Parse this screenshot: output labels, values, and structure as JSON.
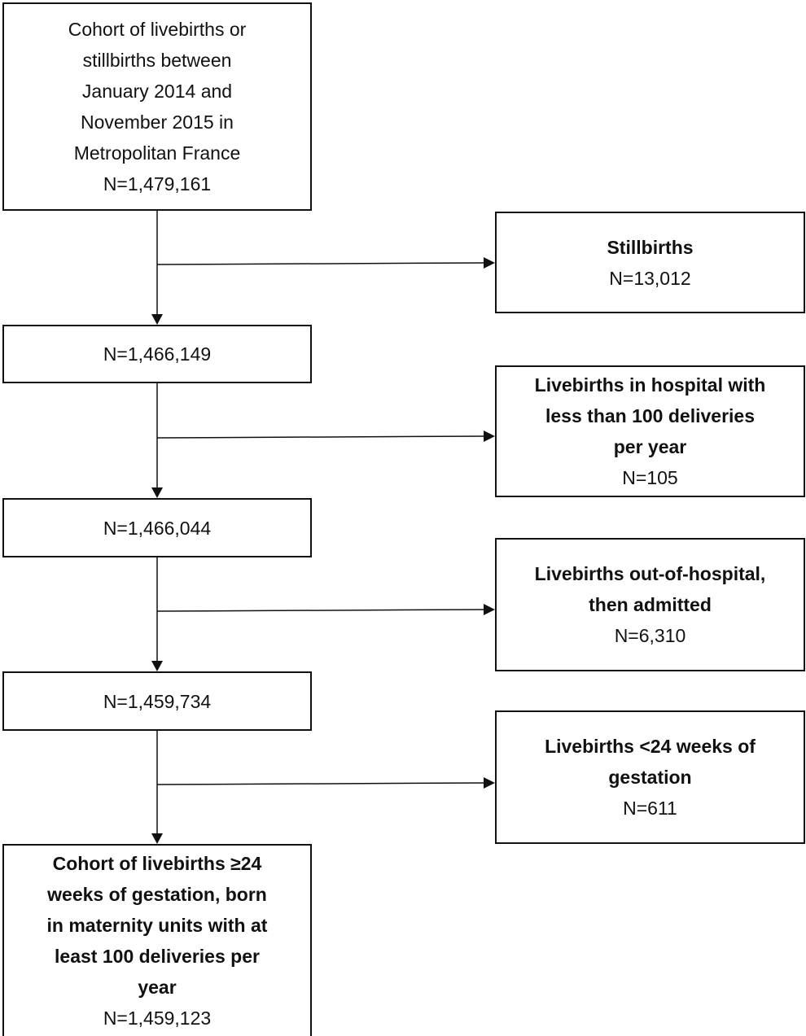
{
  "main_boxes": [
    {
      "lines": [
        "Cohort of livebirths or",
        "stillbirths between",
        "January 2014 and",
        "November 2015 in",
        "Metropolitan France"
      ],
      "count": "N=1,479,161"
    },
    {
      "lines": [],
      "count": "N=1,466,149"
    },
    {
      "lines": [],
      "count": "N=1,466,044"
    },
    {
      "lines": [],
      "count": "N=1,459,734"
    }
  ],
  "exclusion_boxes": [
    {
      "title_lines": [
        "Stillbirths"
      ],
      "count": "N=13,012"
    },
    {
      "title_lines": [
        "Livebirths in hospital with",
        "less than 100 deliveries",
        "per year"
      ],
      "count": "N=105"
    },
    {
      "title_lines": [
        "Livebirths out-of-hospital,",
        "then admitted"
      ],
      "count": "N=6,310"
    },
    {
      "title_lines": [
        "Livebirths <24 weeks of",
        "gestation"
      ],
      "count": "N=611"
    }
  ],
  "final_box": {
    "title_lines": [
      "Cohort of livebirths ≥24",
      "weeks of gestation, born",
      "in maternity units with at",
      "least 100 deliveries per",
      "year"
    ],
    "count": "N=1,459,123"
  }
}
